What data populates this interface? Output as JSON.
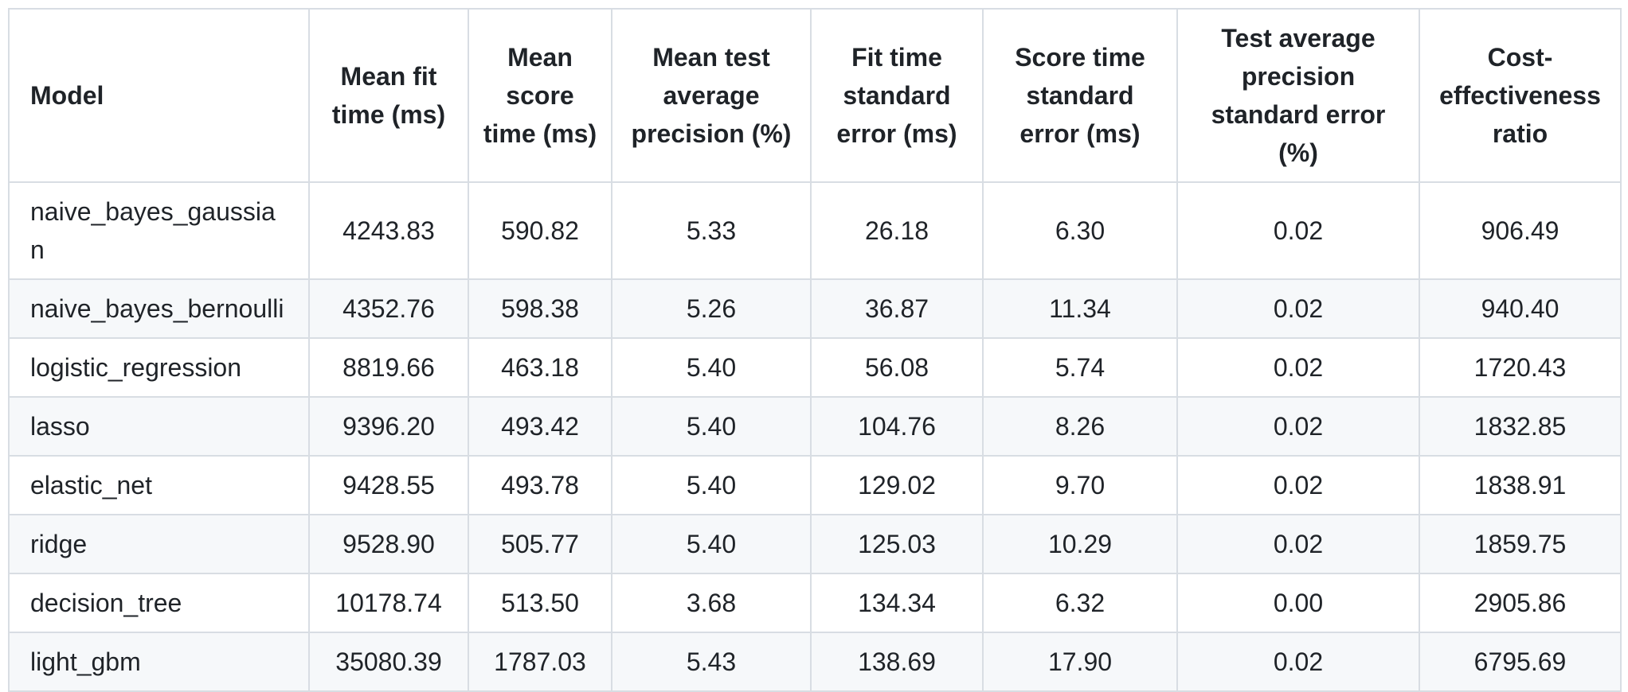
{
  "colors": {
    "text": "#1f2328",
    "border": "#d8dde3",
    "row_stripe": "#f6f8fa",
    "background": "#ffffff"
  },
  "chart_data": {
    "type": "table",
    "title": "",
    "columns": [
      "Model",
      "Mean fit time (ms)",
      "Mean score time (ms)",
      "Mean test average precision (%)",
      "Fit time standard error (ms)",
      "Score time standard error (ms)",
      "Test average precision standard error (%)",
      "Cost-effectiveness ratio"
    ],
    "align": [
      "left",
      "center",
      "center",
      "center",
      "center",
      "center",
      "center",
      "center"
    ],
    "rows": [
      [
        "naive_bayes_gaussian",
        "4243.83",
        "590.82",
        "5.33",
        "26.18",
        "6.30",
        "0.02",
        "906.49"
      ],
      [
        "naive_bayes_bernoulli",
        "4352.76",
        "598.38",
        "5.26",
        "36.87",
        "11.34",
        "0.02",
        "940.40"
      ],
      [
        "logistic_regression",
        "8819.66",
        "463.18",
        "5.40",
        "56.08",
        "5.74",
        "0.02",
        "1720.43"
      ],
      [
        "lasso",
        "9396.20",
        "493.42",
        "5.40",
        "104.76",
        "8.26",
        "0.02",
        "1832.85"
      ],
      [
        "elastic_net",
        "9428.55",
        "493.78",
        "5.40",
        "129.02",
        "9.70",
        "0.02",
        "1838.91"
      ],
      [
        "ridge",
        "9528.90",
        "505.77",
        "5.40",
        "125.03",
        "10.29",
        "0.02",
        "1859.75"
      ],
      [
        "decision_tree",
        "10178.74",
        "513.50",
        "3.68",
        "134.34",
        "6.32",
        "0.00",
        "2905.86"
      ],
      [
        "light_gbm",
        "35080.39",
        "1787.03",
        "5.43",
        "138.69",
        "17.90",
        "0.02",
        "6795.69"
      ]
    ]
  }
}
